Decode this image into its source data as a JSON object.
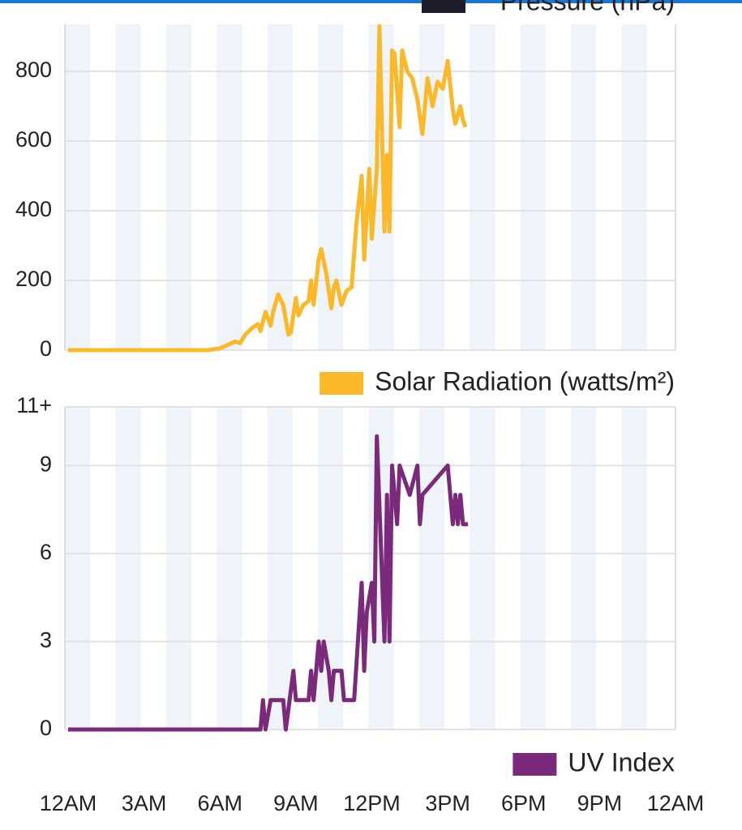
{
  "partial_legend": {
    "text": "Pressure (hPa)",
    "color": "#1c1c2a"
  },
  "chart_data": [
    {
      "type": "line",
      "ylim": [
        0,
        935
      ],
      "yticks": [
        0,
        200,
        400,
        600,
        800
      ],
      "xlim": [
        0,
        24
      ],
      "grid": true,
      "legend_corner": "bottom-right",
      "series": [
        {
          "name": "Solar Radiation (watts/m²)",
          "color": "#fbb829",
          "x": [
            0,
            5.5,
            6.0,
            6.3,
            6.6,
            6.8,
            7.0,
            7.3,
            7.5,
            7.6,
            7.8,
            8.0,
            8.1,
            8.3,
            8.5,
            8.7,
            8.8,
            9.0,
            9.1,
            9.3,
            9.5,
            9.6,
            9.7,
            9.9,
            10.0,
            10.2,
            10.4,
            10.5,
            10.6,
            10.8,
            11.0,
            11.2,
            11.4,
            11.6,
            11.7,
            11.9,
            12.0,
            12.2,
            12.3,
            12.5,
            12.6,
            12.7,
            12.8,
            12.9,
            13.1,
            13.2,
            13.4,
            13.6,
            13.8,
            14.0,
            14.2,
            14.4,
            14.6,
            14.8,
            15.0,
            15.2,
            15.3,
            15.5,
            15.6,
            15.7
          ],
          "values": [
            0,
            0,
            5,
            15,
            25,
            20,
            45,
            65,
            75,
            55,
            110,
            70,
            110,
            160,
            130,
            45,
            50,
            150,
            100,
            130,
            140,
            200,
            130,
            260,
            290,
            220,
            120,
            180,
            200,
            130,
            170,
            180,
            370,
            500,
            260,
            520,
            320,
            520,
            930,
            340,
            560,
            340,
            860,
            850,
            640,
            860,
            800,
            780,
            720,
            620,
            780,
            700,
            770,
            750,
            830,
            690,
            650,
            700,
            660,
            640
          ]
        }
      ]
    },
    {
      "type": "line",
      "ylim": [
        0,
        11
      ],
      "yticks": [
        0,
        3,
        6,
        9,
        {
          "value": 11,
          "label": "11+"
        }
      ],
      "xlim": [
        0,
        24
      ],
      "grid": true,
      "legend_corner": "bottom-right",
      "xticks": [
        {
          "value": 0,
          "label": "12AM"
        },
        {
          "value": 3,
          "label": "3AM"
        },
        {
          "value": 6,
          "label": "6AM"
        },
        {
          "value": 9,
          "label": "9AM"
        },
        {
          "value": 12,
          "label": "12PM"
        },
        {
          "value": 15,
          "label": "3PM"
        },
        {
          "value": 18,
          "label": "6PM"
        },
        {
          "value": 21,
          "label": "9PM"
        },
        {
          "value": 24,
          "label": "12AM"
        }
      ],
      "series": [
        {
          "name": "UV Index",
          "color": "#7b2a7b",
          "x": [
            0,
            7.6,
            7.7,
            7.8,
            8.0,
            8.5,
            8.6,
            8.9,
            9.0,
            9.5,
            9.6,
            9.7,
            9.9,
            10.0,
            10.1,
            10.3,
            10.4,
            10.5,
            10.8,
            10.9,
            11.3,
            11.6,
            11.7,
            11.8,
            12.0,
            12.1,
            12.2,
            12.5,
            12.6,
            12.7,
            12.8,
            13.0,
            13.1,
            13.5,
            13.8,
            13.9,
            14.0,
            15.0,
            15.2,
            15.3,
            15.4,
            15.5,
            15.6,
            15.8
          ],
          "values": [
            0,
            0,
            1,
            0,
            1,
            1,
            0,
            2,
            1,
            1,
            2,
            1,
            3,
            2,
            3,
            2,
            1,
            2,
            2,
            1,
            1,
            5,
            2,
            4,
            5,
            3,
            10,
            3,
            8,
            3,
            9,
            7,
            9,
            8,
            9,
            7,
            8,
            9,
            7,
            8,
            7,
            8,
            7,
            7
          ]
        }
      ]
    }
  ]
}
